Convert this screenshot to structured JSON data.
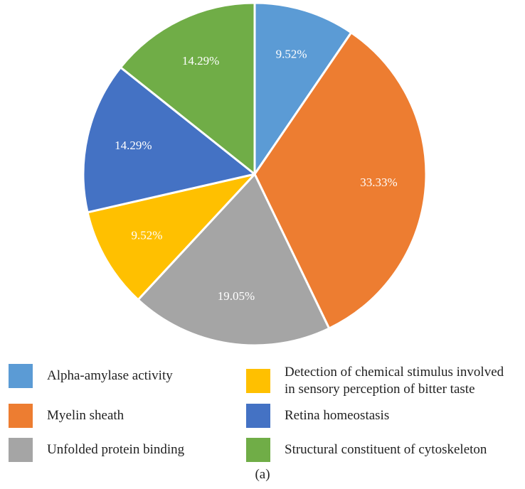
{
  "chart_data": {
    "type": "pie",
    "title": "",
    "start_angle_deg": 0,
    "direction": "clockwise",
    "slices": [
      {
        "label": "Alpha-amylase activity",
        "value": 9.52,
        "value_label": "9.52%",
        "color": "#5B9BD5"
      },
      {
        "label": "Myelin sheath",
        "value": 33.33,
        "value_label": "33.33%",
        "color": "#ED7D31"
      },
      {
        "label": "Unfolded protein binding",
        "value": 19.05,
        "value_label": "19.05%",
        "color": "#A5A5A5"
      },
      {
        "label": "Detection of chemical stimulus involved\nin sensory perception of bitter taste",
        "value": 9.52,
        "value_label": "9.52%",
        "color": "#FFC000"
      },
      {
        "label": "Retina homeostasis",
        "value": 14.29,
        "value_label": "14.29%",
        "color": "#4472C4"
      },
      {
        "label": "Structural constituent of cytoskeleton",
        "value": 14.29,
        "value_label": "14.29%",
        "color": "#70AD47"
      }
    ]
  },
  "legend": {
    "items": [
      {
        "label": "Alpha-amylase activity",
        "color": "#5B9BD5"
      },
      {
        "label": "Detection of chemical stimulus involved\nin sensory perception of bitter taste",
        "color": "#FFC000"
      },
      {
        "label": "Myelin sheath",
        "color": "#ED7D31"
      },
      {
        "label": "Retina homeostasis",
        "color": "#4472C4"
      },
      {
        "label": "Unfolded protein binding",
        "color": "#A5A5A5"
      },
      {
        "label": "Structural constituent of cytoskeleton",
        "color": "#70AD47"
      }
    ]
  },
  "caption": "(a)"
}
